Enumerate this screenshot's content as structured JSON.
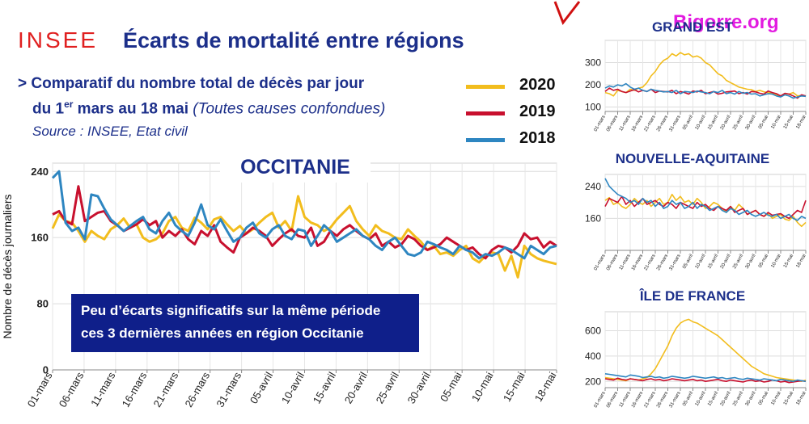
{
  "header": {
    "brand": "INSEE",
    "title": "Écarts de mortalité entre régions",
    "subtitle_line1": "> Comparatif du nombre total de décès par jour",
    "subtitle_line2_pre": "du 1",
    "subtitle_line2_sup": "er",
    "subtitle_line2_post": " mars au 18 mai",
    "subtitle_line2_italic": "(Toutes causes confondues)",
    "source": "Source : INSEE, Etat civil"
  },
  "watermark": "Bigorre.org",
  "legend": [
    {
      "label": "2020",
      "color": "#f2bd1d"
    },
    {
      "label": "2019",
      "color": "#c8102e"
    },
    {
      "label": "2018",
      "color": "#2e86c1"
    }
  ],
  "callout": {
    "line1": "Peu d’écarts significatifs sur la même période",
    "line2": "ces 3 dernières années  en région Occitanie"
  },
  "chart_data": [
    {
      "type": "line",
      "title": "OCCITANIE",
      "ylabel": "Nombre de décès journaliers",
      "ylim": [
        0,
        250
      ],
      "yticks": [
        0,
        80,
        160,
        240
      ],
      "xticks": [
        "01-mars",
        "06-mars",
        "11-mars",
        "16-mars",
        "21-mars",
        "26-mars",
        "31-mars",
        "05-avril",
        "10-avril",
        "15-avril",
        "20-avril",
        "25-avril",
        "30-avril",
        "05-mai",
        "10-mai",
        "15-mai",
        "18-mai"
      ],
      "x_start": "01-mars",
      "days": 79,
      "series": [
        {
          "name": "2020",
          "color": "#f2bd1d",
          "values": [
            171,
            188,
            180,
            178,
            168,
            155,
            168,
            162,
            158,
            170,
            175,
            183,
            172,
            176,
            160,
            155,
            158,
            165,
            180,
            185,
            172,
            168,
            184,
            178,
            170,
            182,
            185,
            176,
            168,
            174,
            165,
            170,
            178,
            185,
            190,
            172,
            180,
            168,
            210,
            185,
            178,
            175,
            168,
            172,
            182,
            190,
            198,
            180,
            170,
            162,
            175,
            168,
            165,
            160,
            158,
            170,
            162,
            155,
            145,
            150,
            140,
            142,
            138,
            145,
            150,
            135,
            130,
            138,
            142,
            140,
            120,
            138,
            112,
            150,
            140,
            135,
            132,
            130,
            128
          ]
        },
        {
          "name": "2019",
          "color": "#c8102e",
          "values": [
            188,
            192,
            180,
            176,
            222,
            180,
            185,
            190,
            192,
            180,
            175,
            168,
            172,
            176,
            182,
            175,
            180,
            160,
            168,
            162,
            170,
            158,
            152,
            168,
            162,
            175,
            155,
            148,
            142,
            160,
            165,
            172,
            168,
            162,
            150,
            158,
            165,
            170,
            162,
            160,
            172,
            150,
            155,
            168,
            162,
            170,
            175,
            168,
            162,
            158,
            165,
            150,
            155,
            148,
            152,
            162,
            158,
            150,
            145,
            148,
            152,
            160,
            155,
            150,
            145,
            148,
            140,
            135,
            145,
            150,
            148,
            142,
            150,
            165,
            158,
            160,
            148,
            155,
            150
          ]
        },
        {
          "name": "2018",
          "color": "#2e86c1",
          "values": [
            232,
            240,
            178,
            168,
            172,
            158,
            212,
            210,
            195,
            182,
            175,
            168,
            174,
            180,
            185,
            170,
            165,
            180,
            190,
            175,
            168,
            162,
            178,
            200,
            175,
            170,
            182,
            168,
            155,
            160,
            172,
            178,
            165,
            160,
            170,
            175,
            162,
            158,
            170,
            168,
            150,
            162,
            175,
            168,
            155,
            160,
            165,
            170,
            162,
            158,
            150,
            145,
            155,
            160,
            150,
            140,
            138,
            142,
            155,
            152,
            148,
            145,
            140,
            150,
            145,
            142,
            135,
            140,
            138,
            142,
            148,
            145,
            140,
            135,
            150,
            145,
            140,
            148,
            150
          ]
        }
      ]
    },
    {
      "type": "line",
      "title": "GRAND EST",
      "yticks": [
        100,
        200,
        300
      ],
      "ylim": [
        80,
        400
      ],
      "xticks": [
        "01-mars",
        "06-mars",
        "11-mars",
        "16-mars",
        "21-mars",
        "26-mars",
        "31-mars",
        "05-avril",
        "10-avril",
        "15-avril",
        "20-avril",
        "25-avril",
        "30-avril",
        "05-mai",
        "10-mai",
        "15-mai",
        "18-mai"
      ],
      "series": [
        {
          "name": "2020",
          "color": "#f2bd1d",
          "values": [
            165,
            160,
            150,
            175,
            170,
            165,
            180,
            175,
            185,
            190,
            210,
            240,
            260,
            290,
            310,
            320,
            340,
            330,
            345,
            335,
            340,
            325,
            330,
            320,
            300,
            290,
            270,
            250,
            240,
            220,
            210,
            200,
            190,
            185,
            180,
            178,
            170,
            175,
            168,
            165,
            160,
            155,
            150,
            160,
            158,
            165,
            150,
            152,
            148
          ]
        },
        {
          "name": "2019",
          "color": "#c8102e",
          "values": [
            170,
            185,
            175,
            180,
            170,
            165,
            172,
            178,
            168,
            175,
            170,
            180,
            165,
            172,
            170,
            168,
            175,
            160,
            170,
            165,
            158,
            172,
            168,
            175,
            160,
            165,
            170,
            158,
            162,
            168,
            170,
            172,
            160,
            165,
            158,
            170,
            168,
            162,
            158,
            172,
            165,
            160,
            150,
            162,
            158,
            150,
            140,
            155,
            150
          ]
        },
        {
          "name": "2018",
          "color": "#2e86c1",
          "values": [
            185,
            195,
            190,
            200,
            195,
            205,
            190,
            180,
            185,
            175,
            170,
            180,
            175,
            172,
            168,
            170,
            165,
            175,
            160,
            170,
            168,
            165,
            172,
            168,
            165,
            160,
            170,
            165,
            175,
            160,
            165,
            158,
            170,
            162,
            165,
            158,
            160,
            150,
            155,
            160,
            158,
            150,
            145,
            155,
            150,
            140,
            145,
            150,
            148
          ]
        }
      ]
    },
    {
      "type": "line",
      "title": "NOUVELLE-AQUITAINE",
      "yticks": [
        160,
        240
      ],
      "ylim": [
        80,
        270
      ],
      "xticks": [
        "01-mars",
        "06-mars",
        "11-mars",
        "16-mars",
        "21-mars",
        "26-mars",
        "31-mars",
        "05-avril",
        "10-avril",
        "15-avril",
        "20-avril",
        "25-avril",
        "30-avril",
        "05-mai",
        "10-mai",
        "15-mai",
        "18-mai"
      ],
      "series": [
        {
          "name": "2020",
          "color": "#f2bd1d",
          "values": [
            205,
            212,
            195,
            200,
            190,
            185,
            195,
            210,
            200,
            195,
            205,
            190,
            200,
            210,
            195,
            200,
            220,
            205,
            215,
            200,
            205,
            195,
            210,
            200,
            185,
            190,
            200,
            195,
            185,
            175,
            190,
            180,
            195,
            185,
            170,
            175,
            180,
            170,
            165,
            172,
            160,
            165,
            170,
            158,
            155,
            165,
            150,
            140,
            150
          ]
        },
        {
          "name": "2019",
          "color": "#c8102e",
          "values": [
            190,
            210,
            205,
            200,
            215,
            195,
            205,
            190,
            200,
            210,
            195,
            200,
            205,
            195,
            190,
            200,
            195,
            185,
            200,
            195,
            190,
            185,
            200,
            190,
            195,
            185,
            180,
            190,
            185,
            180,
            190,
            175,
            180,
            185,
            170,
            175,
            180,
            170,
            165,
            175,
            168,
            170,
            172,
            165,
            160,
            170,
            180,
            175,
            205
          ]
        },
        {
          "name": "2018",
          "color": "#2e86c1",
          "values": [
            260,
            240,
            230,
            220,
            215,
            210,
            200,
            205,
            195,
            210,
            200,
            205,
            190,
            200,
            185,
            190,
            205,
            195,
            200,
            185,
            190,
            200,
            185,
            195,
            190,
            180,
            185,
            190,
            180,
            175,
            185,
            180,
            170,
            175,
            180,
            170,
            165,
            170,
            175,
            168,
            165,
            170,
            160,
            165,
            170,
            160,
            155,
            165,
            160
          ]
        }
      ]
    },
    {
      "type": "line",
      "title": "ÎLE DE FRANCE",
      "yticks": [
        200,
        400,
        600
      ],
      "ylim": [
        150,
        750
      ],
      "xticks": [
        "01-mars",
        "06-mars",
        "11-mars",
        "16-mars",
        "21-mars",
        "26-mars",
        "31-mars",
        "05-avril",
        "10-avril",
        "15-avril",
        "20-avril",
        "25-avril",
        "30-avril",
        "05-mai",
        "10-mai",
        "15-mai",
        "18-mai"
      ],
      "series": [
        {
          "name": "2020",
          "color": "#f2bd1d",
          "values": [
            230,
            225,
            220,
            215,
            210,
            205,
            220,
            215,
            210,
            220,
            230,
            260,
            300,
            360,
            420,
            480,
            560,
            620,
            660,
            680,
            690,
            670,
            660,
            640,
            620,
            600,
            580,
            560,
            530,
            500,
            470,
            440,
            410,
            380,
            350,
            320,
            300,
            280,
            260,
            250,
            240,
            230,
            225,
            220,
            215,
            210,
            205,
            200,
            210
          ]
        },
        {
          "name": "2019",
          "color": "#c8102e",
          "values": [
            220,
            215,
            210,
            225,
            215,
            210,
            220,
            215,
            210,
            205,
            215,
            220,
            210,
            215,
            205,
            210,
            220,
            215,
            210,
            205,
            210,
            215,
            205,
            210,
            200,
            205,
            210,
            215,
            205,
            200,
            210,
            205,
            200,
            195,
            205,
            210,
            200,
            205,
            195,
            200,
            210,
            205,
            195,
            200,
            190,
            195,
            200,
            205,
            200
          ]
        },
        {
          "name": "2018",
          "color": "#2e86c1",
          "values": [
            260,
            255,
            250,
            245,
            240,
            235,
            250,
            245,
            240,
            230,
            235,
            240,
            230,
            235,
            225,
            230,
            240,
            235,
            230,
            225,
            230,
            240,
            235,
            230,
            225,
            230,
            235,
            225,
            230,
            220,
            225,
            230,
            220,
            215,
            225,
            220,
            215,
            210,
            220,
            215,
            210,
            205,
            215,
            210,
            205,
            200,
            210,
            205,
            200
          ]
        }
      ]
    }
  ]
}
